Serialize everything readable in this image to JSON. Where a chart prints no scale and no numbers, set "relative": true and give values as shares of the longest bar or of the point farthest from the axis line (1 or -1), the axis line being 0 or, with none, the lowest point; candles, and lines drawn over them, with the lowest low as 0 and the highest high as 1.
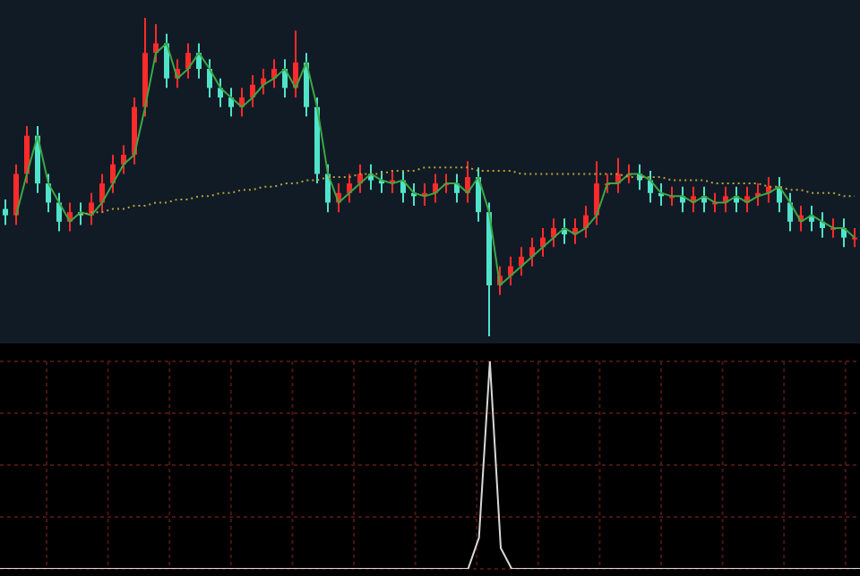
{
  "chart_data": [
    {
      "type": "candlestick",
      "relative": true,
      "grid": false,
      "legend": false,
      "colors": [
        "#4fe3c9",
        "#ff2a2a",
        "#ff2a2a",
        "#4fe3c9",
        "#4fe3c9",
        "#4fe3c9",
        "#ff2a2a",
        "#4fe3c9",
        "#ff2a2a",
        "#ff2a2a",
        "#ff2a2a",
        "#ff2a2a",
        "#ff2a2a",
        "#ff2a2a",
        "#ff2a2a",
        "#4fe3c9",
        "#ff2a2a",
        "#ff2a2a",
        "#4fe3c9",
        "#4fe3c9",
        "#4fe3c9",
        "#4fe3c9",
        "#ff2a2a",
        "#ff2a2a",
        "#ff2a2a",
        "#ff2a2a",
        "#4fe3c9",
        "#ff2a2a",
        "#4fe3c9",
        "#4fe3c9",
        "#4fe3c9",
        "#ff2a2a",
        "#ff2a2a",
        "#ff2a2a",
        "#4fe3c9",
        "#4fe3c9",
        "#ff2a2a",
        "#4fe3c9",
        "#4fe3c9",
        "#ff2a2a",
        "#ff2a2a",
        "#ff2a2a",
        "#4fe3c9",
        "#ff2a2a",
        "#4fe3c9",
        "#4fe3c9",
        "#ff2a2a",
        "#ff2a2a",
        "#ff2a2a",
        "#ff2a2a",
        "#ff2a2a",
        "#ff2a2a",
        "#4fe3c9",
        "#ff2a2a",
        "#ff2a2a",
        "#ff2a2a",
        "#ff2a2a",
        "#ff2a2a",
        "#ff2a2a",
        "#4fe3c9",
        "#4fe3c9",
        "#4fe3c9",
        "#ff2a2a",
        "#4fe3c9",
        "#ff2a2a",
        "#4fe3c9",
        "#ff2a2a",
        "#ff2a2a",
        "#4fe3c9",
        "#ff2a2a",
        "#ff2a2a",
        "#ff2a2a",
        "#4fe3c9",
        "#4fe3c9",
        "#ff2a2a",
        "#4fe3c9",
        "#4fe3c9",
        "#ff2a2a",
        "#4fe3c9",
        "#ff2a2a"
      ],
      "categories": [
        null,
        null,
        null,
        null,
        null,
        null,
        null,
        null,
        null,
        null,
        null,
        null,
        null,
        null,
        null,
        null,
        null,
        null,
        null,
        null,
        null,
        null,
        null,
        null,
        null,
        null,
        null,
        null,
        null,
        null,
        null,
        null,
        null,
        null,
        null,
        null,
        null,
        null,
        null,
        null,
        null,
        null,
        null,
        null,
        null,
        null,
        null,
        null,
        null,
        null,
        null,
        null,
        null,
        null,
        null,
        null,
        null,
        null,
        null,
        null,
        null,
        null,
        null,
        null,
        null,
        null,
        null,
        null,
        null,
        null,
        null,
        null,
        null,
        null,
        null,
        null,
        null,
        null,
        null,
        null
      ],
      "ohlc": [
        [
          0.4,
          0.43,
          0.35,
          0.38
        ],
        [
          0.38,
          0.54,
          0.35,
          0.51
        ],
        [
          0.51,
          0.66,
          0.48,
          0.63
        ],
        [
          0.63,
          0.66,
          0.45,
          0.48
        ],
        [
          0.48,
          0.51,
          0.39,
          0.42
        ],
        [
          0.42,
          0.45,
          0.33,
          0.36
        ],
        [
          0.36,
          0.42,
          0.33,
          0.39
        ],
        [
          0.39,
          0.42,
          0.35,
          0.38
        ],
        [
          0.38,
          0.45,
          0.35,
          0.42
        ],
        [
          0.42,
          0.51,
          0.39,
          0.48
        ],
        [
          0.48,
          0.57,
          0.45,
          0.54
        ],
        [
          0.54,
          0.6,
          0.51,
          0.57
        ],
        [
          0.57,
          0.75,
          0.54,
          0.72
        ],
        [
          0.72,
          1.0,
          0.69,
          0.89
        ],
        [
          0.89,
          0.98,
          0.86,
          0.92
        ],
        [
          0.92,
          0.95,
          0.78,
          0.81
        ],
        [
          0.81,
          0.87,
          0.78,
          0.84
        ],
        [
          0.84,
          0.92,
          0.81,
          0.89
        ],
        [
          0.89,
          0.92,
          0.81,
          0.84
        ],
        [
          0.84,
          0.87,
          0.75,
          0.78
        ],
        [
          0.78,
          0.81,
          0.72,
          0.75
        ],
        [
          0.75,
          0.78,
          0.69,
          0.72
        ],
        [
          0.72,
          0.78,
          0.69,
          0.75
        ],
        [
          0.75,
          0.82,
          0.72,
          0.79
        ],
        [
          0.79,
          0.84,
          0.76,
          0.81
        ],
        [
          0.81,
          0.87,
          0.78,
          0.84
        ],
        [
          0.84,
          0.87,
          0.75,
          0.78
        ],
        [
          0.78,
          0.96,
          0.75,
          0.86
        ],
        [
          0.86,
          0.89,
          0.69,
          0.72
        ],
        [
          0.72,
          0.75,
          0.48,
          0.51
        ],
        [
          0.51,
          0.54,
          0.39,
          0.42
        ],
        [
          0.42,
          0.48,
          0.39,
          0.45
        ],
        [
          0.45,
          0.51,
          0.42,
          0.48
        ],
        [
          0.48,
          0.54,
          0.45,
          0.51
        ],
        [
          0.51,
          0.54,
          0.46,
          0.49
        ],
        [
          0.49,
          0.52,
          0.45,
          0.48
        ],
        [
          0.48,
          0.52,
          0.45,
          0.49
        ],
        [
          0.49,
          0.52,
          0.42,
          0.45
        ],
        [
          0.45,
          0.48,
          0.41,
          0.44
        ],
        [
          0.44,
          0.48,
          0.41,
          0.45
        ],
        [
          0.45,
          0.51,
          0.42,
          0.48
        ],
        [
          0.48,
          0.51,
          0.45,
          0.48
        ],
        [
          0.48,
          0.51,
          0.42,
          0.45
        ],
        [
          0.45,
          0.55,
          0.42,
          0.5
        ],
        [
          0.5,
          0.53,
          0.36,
          0.39
        ],
        [
          0.39,
          0.42,
          0.0,
          0.16
        ],
        [
          0.16,
          0.22,
          0.13,
          0.19
        ],
        [
          0.19,
          0.25,
          0.16,
          0.22
        ],
        [
          0.22,
          0.28,
          0.19,
          0.25
        ],
        [
          0.25,
          0.31,
          0.22,
          0.28
        ],
        [
          0.28,
          0.34,
          0.25,
          0.31
        ],
        [
          0.31,
          0.37,
          0.28,
          0.34
        ],
        [
          0.34,
          0.37,
          0.29,
          0.32
        ],
        [
          0.32,
          0.37,
          0.29,
          0.34
        ],
        [
          0.34,
          0.41,
          0.31,
          0.38
        ],
        [
          0.38,
          0.55,
          0.35,
          0.48
        ],
        [
          0.48,
          0.51,
          0.45,
          0.48
        ],
        [
          0.48,
          0.56,
          0.45,
          0.51
        ],
        [
          0.51,
          0.54,
          0.48,
          0.51
        ],
        [
          0.51,
          0.54,
          0.46,
          0.49
        ],
        [
          0.49,
          0.52,
          0.42,
          0.45
        ],
        [
          0.45,
          0.48,
          0.41,
          0.44
        ],
        [
          0.44,
          0.47,
          0.41,
          0.44
        ],
        [
          0.44,
          0.47,
          0.39,
          0.42
        ],
        [
          0.42,
          0.47,
          0.39,
          0.44
        ],
        [
          0.44,
          0.47,
          0.39,
          0.42
        ],
        [
          0.42,
          0.45,
          0.39,
          0.42
        ],
        [
          0.42,
          0.47,
          0.39,
          0.44
        ],
        [
          0.44,
          0.47,
          0.39,
          0.42
        ],
        [
          0.42,
          0.47,
          0.39,
          0.44
        ],
        [
          0.44,
          0.48,
          0.41,
          0.45
        ],
        [
          0.45,
          0.5,
          0.42,
          0.47
        ],
        [
          0.47,
          0.5,
          0.39,
          0.42
        ],
        [
          0.42,
          0.45,
          0.33,
          0.36
        ],
        [
          0.36,
          0.41,
          0.33,
          0.38
        ],
        [
          0.38,
          0.41,
          0.33,
          0.36
        ],
        [
          0.36,
          0.39,
          0.31,
          0.34
        ],
        [
          0.34,
          0.37,
          0.31,
          0.34
        ],
        [
          0.34,
          0.37,
          0.28,
          0.31
        ],
        [
          0.31,
          0.34,
          0.28,
          0.31
        ]
      ],
      "series": [
        {
          "type": "line",
          "color": "#3aa845",
          "values": [
            null,
            0.38,
            0.51,
            0.63,
            0.48,
            0.42,
            0.36,
            0.39,
            0.38,
            0.42,
            0.48,
            0.54,
            0.57,
            0.72,
            0.89,
            0.92,
            0.81,
            0.84,
            0.89,
            0.84,
            0.78,
            0.75,
            0.72,
            0.75,
            0.79,
            0.81,
            0.84,
            0.78,
            0.86,
            0.72,
            0.51,
            0.42,
            0.45,
            0.48,
            0.51,
            0.49,
            0.48,
            0.49,
            0.45,
            0.44,
            0.45,
            0.48,
            0.48,
            0.45,
            0.5,
            0.39,
            0.16,
            0.19,
            0.22,
            0.25,
            0.28,
            0.31,
            0.34,
            0.32,
            0.34,
            0.38,
            0.48,
            0.48,
            0.51,
            0.51,
            0.49,
            0.45,
            0.44,
            0.44,
            0.42,
            0.44,
            0.42,
            0.42,
            0.44,
            0.42,
            0.44,
            0.45,
            0.47,
            0.42,
            0.36,
            0.38,
            0.36,
            0.34,
            0.34,
            0.31
          ]
        },
        {
          "type": "line",
          "color": "#b8a23a",
          "line_style": "dotted",
          "values": [
            null,
            null,
            null,
            null,
            null,
            null,
            null,
            0.38,
            0.39,
            0.39,
            0.4,
            0.4,
            0.41,
            0.41,
            0.42,
            0.42,
            0.43,
            0.43,
            0.44,
            0.44,
            0.45,
            0.45,
            0.46,
            0.46,
            0.47,
            0.47,
            0.48,
            0.48,
            0.49,
            0.49,
            0.5,
            0.5,
            0.5,
            0.51,
            0.51,
            0.51,
            0.52,
            0.52,
            0.52,
            0.53,
            0.53,
            0.53,
            0.53,
            0.53,
            0.52,
            0.52,
            0.52,
            0.52,
            0.51,
            0.51,
            0.51,
            0.51,
            0.51,
            0.51,
            0.51,
            0.51,
            0.51,
            0.51,
            0.5,
            0.5,
            0.5,
            0.5,
            0.49,
            0.49,
            0.49,
            0.49,
            0.48,
            0.48,
            0.48,
            0.48,
            0.48,
            0.47,
            0.47,
            0.46,
            0.46,
            0.45,
            0.45,
            0.45,
            0.44,
            0.44
          ]
        }
      ]
    },
    {
      "type": "line",
      "relative": true,
      "grid": true,
      "legend": false,
      "color": "#d9d9d9",
      "categories": [
        null,
        null,
        null,
        null,
        null,
        null,
        null,
        null,
        null,
        null,
        null,
        null,
        null,
        null,
        null,
        null,
        null,
        null,
        null,
        null,
        null,
        null,
        null,
        null,
        null,
        null,
        null,
        null,
        null,
        null,
        null,
        null,
        null,
        null,
        null,
        null,
        null,
        null,
        null,
        null,
        null,
        null,
        null,
        null,
        null,
        null,
        null,
        null,
        null,
        null,
        null,
        null,
        null,
        null,
        null,
        null,
        null,
        null,
        null,
        null,
        null,
        null,
        null,
        null,
        null,
        null,
        null,
        null,
        null,
        null,
        null,
        null,
        null,
        null,
        null,
        null,
        null,
        null,
        null,
        null
      ],
      "values": [
        0,
        0,
        0,
        0,
        0,
        0,
        0,
        0,
        0,
        0,
        0,
        0,
        0,
        0,
        0,
        0,
        0,
        0,
        0,
        0,
        0,
        0,
        0,
        0,
        0,
        0,
        0,
        0,
        0,
        0,
        0,
        0,
        0,
        0,
        0,
        0,
        0,
        0,
        0,
        0,
        0,
        0,
        0,
        0,
        0.15,
        1,
        0.1,
        0,
        0,
        0,
        0,
        0,
        0,
        0,
        0,
        0,
        0,
        0,
        0,
        0,
        0,
        0,
        0,
        0,
        0,
        0,
        0,
        0,
        0,
        0,
        0,
        0,
        0,
        0,
        0,
        0,
        0,
        0,
        0,
        0
      ]
    }
  ]
}
